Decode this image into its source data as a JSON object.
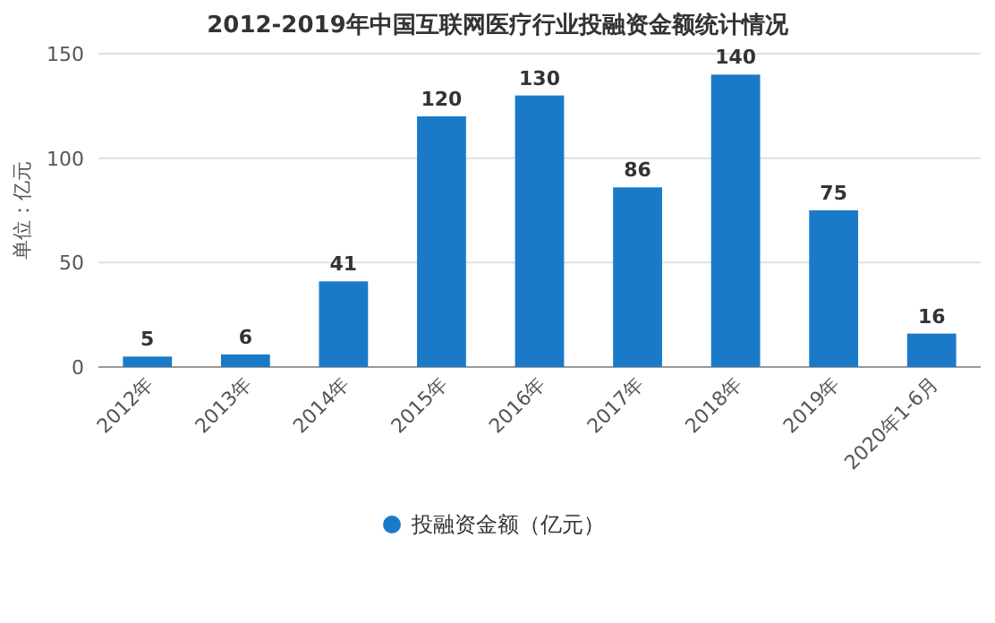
{
  "chart_data": {
    "type": "bar",
    "title": "2012-2019年中国互联网医疗行业投融资金额统计情况",
    "ylabel": "单位：亿元",
    "categories": [
      "2012年",
      "2013年",
      "2014年",
      "2015年",
      "2016年",
      "2017年",
      "2018年",
      "2019年",
      "2020年1-6月"
    ],
    "series": [
      {
        "name": "投融资金额（亿元）",
        "color": "#1a7ac8",
        "values": [
          5,
          6,
          41,
          120,
          130,
          86,
          140,
          75,
          16
        ]
      }
    ],
    "ylim": [
      0,
      150
    ],
    "yticks": [
      0,
      50,
      100,
      150
    ],
    "grid": "y",
    "legend": "bottom",
    "data_labels": true
  }
}
